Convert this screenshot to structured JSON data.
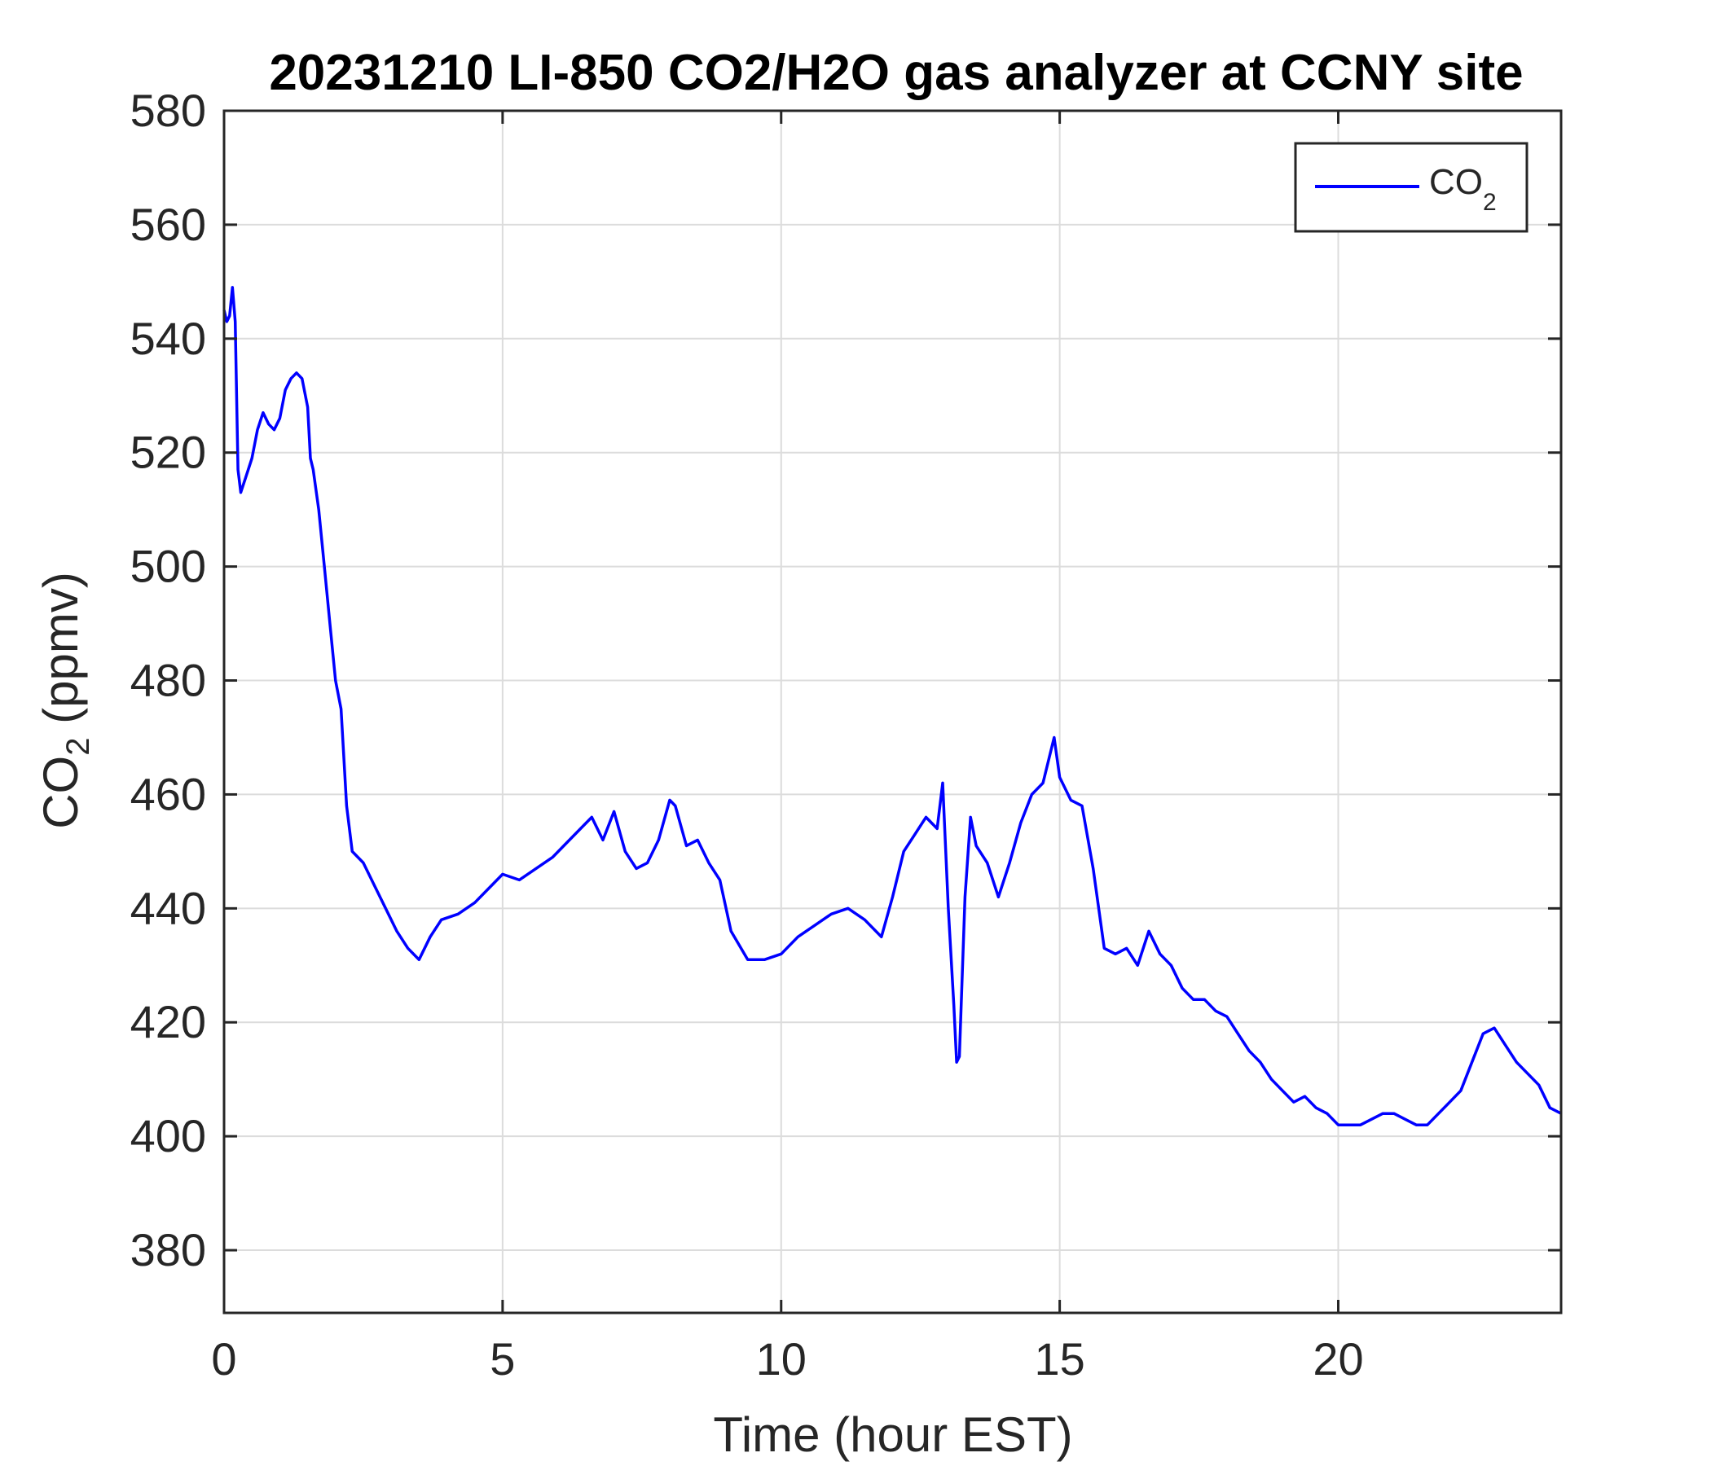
{
  "chart_data": {
    "type": "line",
    "title": "20231210 LI-850 CO2/H2O gas analyzer at CCNY site",
    "xlabel": "Time (hour EST)",
    "ylabel": {
      "base": "CO",
      "sub": "2",
      "rest": " (ppmv)"
    },
    "xlim": [
      0,
      24
    ],
    "ylim": [
      369,
      580
    ],
    "xticks": [
      0,
      5,
      10,
      15,
      20
    ],
    "yticks": [
      380,
      400,
      420,
      440,
      460,
      480,
      500,
      520,
      540,
      560,
      580
    ],
    "grid": true,
    "legend": {
      "position": "top-right",
      "base": "CO",
      "sub": "2"
    },
    "colors": {
      "series": "#0000ff",
      "grid": "#dcdcdc",
      "axes": "#262626"
    },
    "series": [
      {
        "name": "CO2",
        "x": [
          0,
          0.05,
          0.1,
          0.15,
          0.2,
          0.25,
          0.3,
          0.4,
          0.5,
          0.6,
          0.7,
          0.8,
          0.9,
          1.0,
          1.1,
          1.2,
          1.3,
          1.4,
          1.5,
          1.55,
          1.6,
          1.7,
          1.8,
          1.9,
          2.0,
          2.1,
          2.2,
          2.3,
          2.4,
          2.5,
          2.7,
          2.9,
          3.1,
          3.3,
          3.5,
          3.7,
          3.9,
          4.2,
          4.5,
          4.8,
          5.0,
          5.3,
          5.6,
          5.9,
          6.2,
          6.4,
          6.6,
          6.8,
          7.0,
          7.2,
          7.4,
          7.6,
          7.8,
          8.0,
          8.1,
          8.3,
          8.5,
          8.7,
          8.9,
          9.1,
          9.4,
          9.7,
          10.0,
          10.3,
          10.6,
          10.9,
          11.2,
          11.5,
          11.8,
          12.0,
          12.2,
          12.4,
          12.6,
          12.8,
          12.9,
          13.0,
          13.1,
          13.15,
          13.2,
          13.3,
          13.4,
          13.5,
          13.7,
          13.9,
          14.1,
          14.3,
          14.5,
          14.7,
          14.9,
          15.0,
          15.2,
          15.4,
          15.6,
          15.8,
          16.0,
          16.2,
          16.4,
          16.6,
          16.8,
          17.0,
          17.2,
          17.4,
          17.6,
          17.8,
          18.0,
          18.2,
          18.4,
          18.6,
          18.8,
          19.0,
          19.2,
          19.4,
          19.6,
          19.8,
          20.0,
          20.2,
          20.4,
          20.6,
          20.8,
          21.0,
          21.2,
          21.4,
          21.6,
          21.8,
          22.0,
          22.2,
          22.4,
          22.6,
          22.8,
          23.0,
          23.2,
          23.4,
          23.6,
          23.8,
          24.0
        ],
        "values": [
          545,
          543,
          544,
          549,
          543,
          517,
          513,
          516,
          519,
          524,
          527,
          525,
          524,
          526,
          531,
          533,
          534,
          533,
          528,
          519,
          517,
          510,
          500,
          490,
          480,
          475,
          458,
          450,
          449,
          448,
          444,
          440,
          436,
          433,
          431,
          435,
          438,
          439,
          441,
          444,
          446,
          445,
          447,
          449,
          452,
          454,
          456,
          452,
          457,
          450,
          447,
          448,
          452,
          459,
          458,
          451,
          452,
          448,
          445,
          436,
          431,
          431,
          432,
          435,
          437,
          439,
          440,
          438,
          435,
          442,
          450,
          453,
          456,
          454,
          462,
          440,
          423,
          413,
          414,
          442,
          456,
          451,
          448,
          442,
          448,
          455,
          460,
          462,
          470,
          463,
          459,
          458,
          447,
          433,
          432,
          433,
          430,
          436,
          432,
          430,
          426,
          424,
          424,
          422,
          421,
          418,
          415,
          413,
          410,
          408,
          406,
          407,
          405,
          404,
          402,
          402,
          402,
          403,
          404,
          404,
          403,
          402,
          402,
          404,
          406,
          408,
          413,
          418,
          419,
          416,
          413,
          411,
          409,
          405,
          404
        ]
      }
    ]
  }
}
